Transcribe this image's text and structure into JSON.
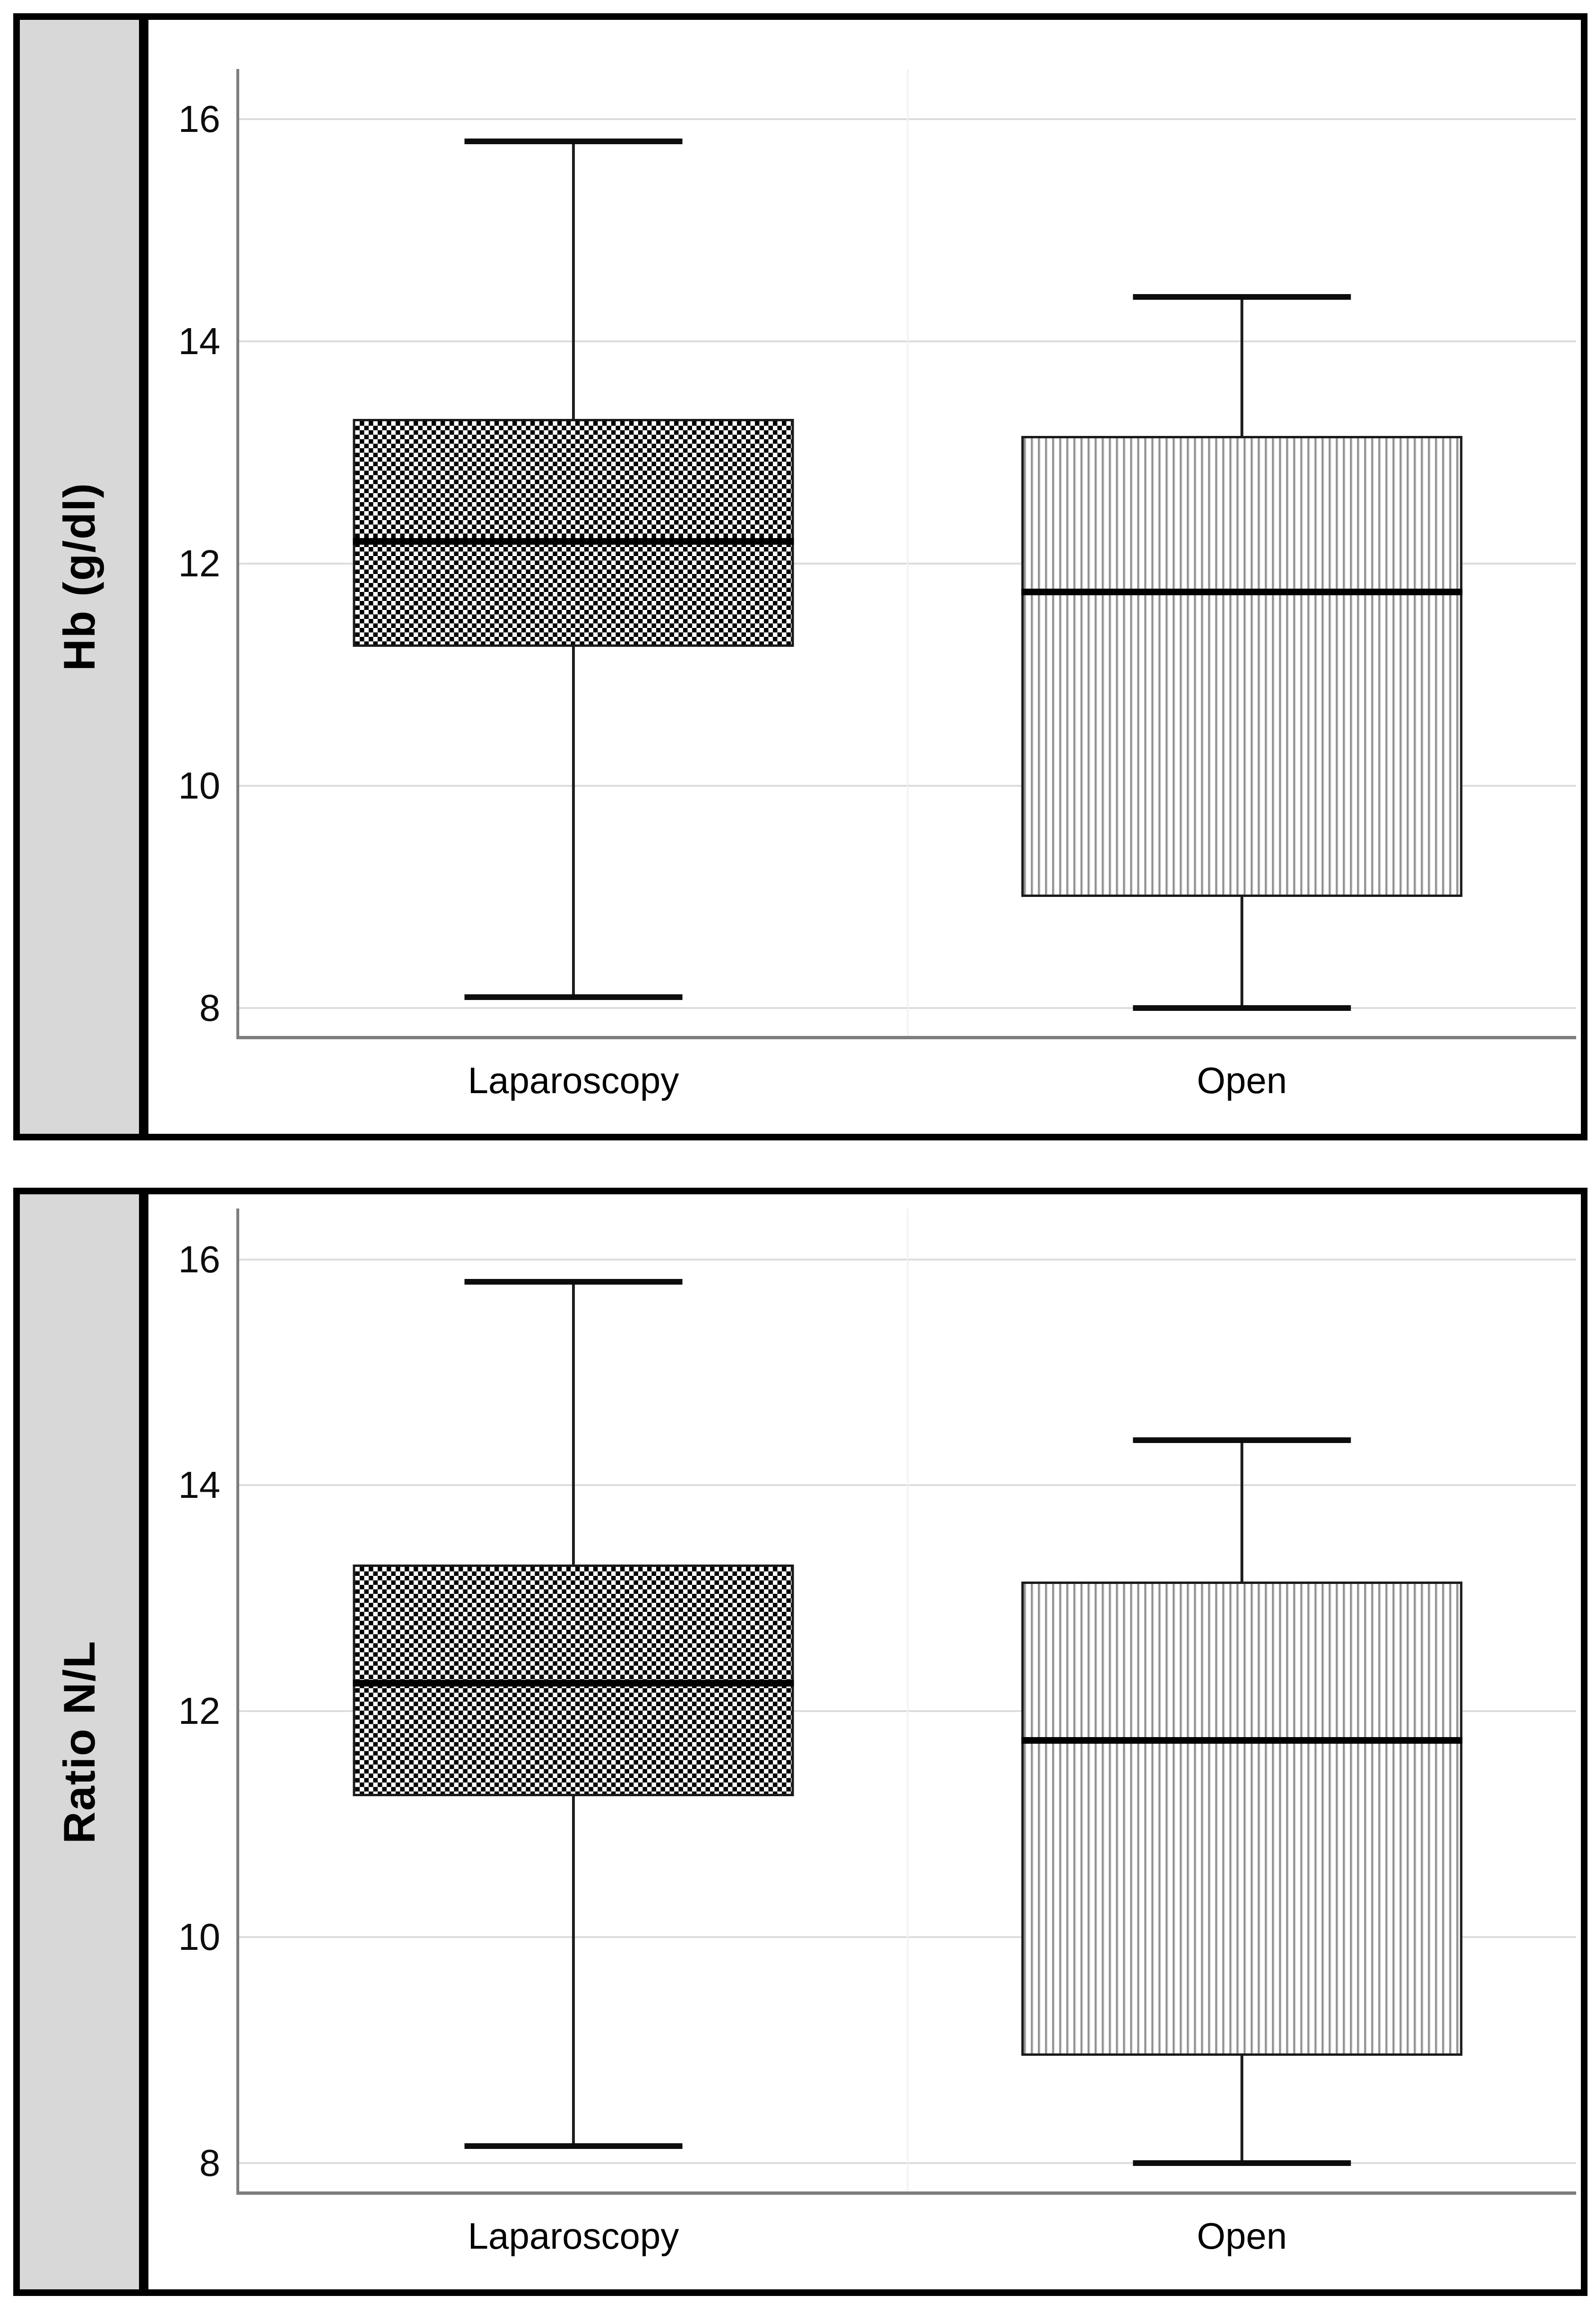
{
  "figure": {
    "background": "#ffffff",
    "panel_border_color": "#000000",
    "strip_bg": "#d8d8d8",
    "grid_color": "#dcdcdc",
    "axis_color": "#7d7d7d",
    "box_line_color": "#1a1a1a",
    "median_color": "#000000",
    "stripe_ink": "#8f8f8f",
    "checker_ink": "#000000"
  },
  "chart_data": [
    {
      "type": "boxplot",
      "title": "",
      "ylabel": "Hb (g/dl)",
      "xlabel": "",
      "categories": [
        "Laparoscopy",
        "Open"
      ],
      "y_ticks": [
        16,
        14,
        12,
        10,
        8
      ],
      "ylim": [
        7.75,
        16.45
      ],
      "grid": true,
      "legend": false,
      "series": [
        {
          "name": "Laparoscopy",
          "pattern": "checkerboard",
          "whisker_low": 8.1,
          "q1": 11.25,
          "median": 12.2,
          "q3": 13.3,
          "whisker_high": 15.8
        },
        {
          "name": "Open",
          "pattern": "vertical-stripes",
          "whisker_low": 8.0,
          "q1": 9.0,
          "median": 11.75,
          "q3": 13.15,
          "whisker_high": 14.4
        }
      ]
    },
    {
      "type": "boxplot",
      "title": "",
      "ylabel": "Ratio N/L",
      "xlabel": "",
      "categories": [
        "Laparoscopy",
        "Open"
      ],
      "y_ticks": [
        16,
        14,
        12,
        10,
        8
      ],
      "ylim": [
        7.75,
        16.45
      ],
      "grid": true,
      "legend": false,
      "series": [
        {
          "name": "Laparoscopy",
          "pattern": "checkerboard",
          "whisker_low": 8.15,
          "q1": 11.25,
          "median": 12.25,
          "q3": 13.3,
          "whisker_high": 15.8
        },
        {
          "name": "Open",
          "pattern": "vertical-stripes",
          "whisker_low": 8.0,
          "q1": 8.95,
          "median": 11.75,
          "q3": 13.15,
          "whisker_high": 14.4
        }
      ]
    }
  ]
}
